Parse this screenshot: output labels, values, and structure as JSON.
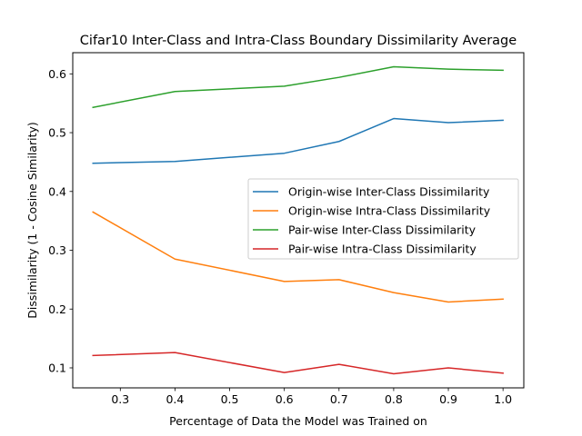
{
  "chart_data": {
    "type": "line",
    "title": "Cifar10 Inter-Class and Intra-Class Boundary Dissimilarity Average",
    "xlabel": "Percentage of Data the Model was Trained on",
    "ylabel": "Dissimilarity (1 - Cosine Similarity)",
    "xlim": [
      0.213,
      1.038
    ],
    "ylim": [
      0.066,
      0.636
    ],
    "xticks": [
      0.3,
      0.4,
      0.5,
      0.6,
      0.7,
      0.8,
      0.9,
      1.0
    ],
    "xtick_labels": [
      "0.3",
      "0.4",
      "0.5",
      "0.6",
      "0.7",
      "0.8",
      "0.9",
      "1.0"
    ],
    "yticks": [
      0.1,
      0.2,
      0.3,
      0.4,
      0.5,
      0.6
    ],
    "ytick_labels": [
      "0.1",
      "0.2",
      "0.3",
      "0.4",
      "0.5",
      "0.6"
    ],
    "grid": false,
    "legend_position": "center-right",
    "x": [
      0.25,
      0.4,
      0.6,
      0.7,
      0.8,
      0.9,
      1.0
    ],
    "series": [
      {
        "name": "Origin-wise Inter-Class Dissimilarity",
        "color": "#1f77b4",
        "values": [
          0.448,
          0.451,
          0.465,
          0.485,
          0.524,
          0.517,
          0.521
        ]
      },
      {
        "name": "Origin-wise Intra-Class Dissimilarity",
        "color": "#ff7f0e",
        "values": [
          0.365,
          0.285,
          0.247,
          0.25,
          0.228,
          0.212,
          0.217
        ]
      },
      {
        "name": "Pair-wise Inter-Class Dissimilarity",
        "color": "#2ca02c",
        "values": [
          0.543,
          0.57,
          0.579,
          0.594,
          0.612,
          0.608,
          0.606
        ]
      },
      {
        "name": "Pair-wise Intra-Class Dissimilarity",
        "color": "#d62728",
        "values": [
          0.121,
          0.126,
          0.092,
          0.106,
          0.09,
          0.1,
          0.091
        ]
      }
    ]
  }
}
